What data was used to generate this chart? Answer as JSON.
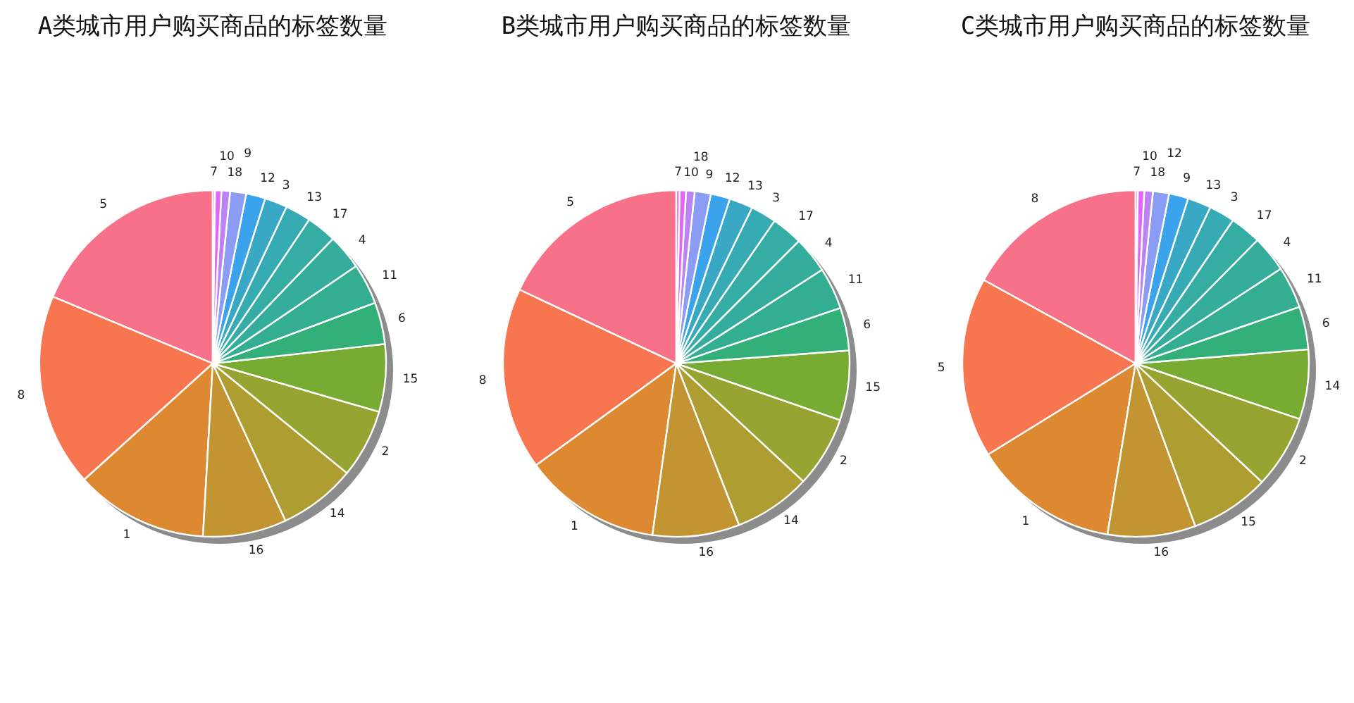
{
  "chart_data": [
    {
      "type": "pie",
      "title": "A类城市用户购买商品的标签数量",
      "categories": [
        "5",
        "8",
        "1",
        "16",
        "14",
        "2",
        "15",
        "6",
        "11",
        "4",
        "17",
        "13",
        "3",
        "12",
        "9",
        "18",
        "10",
        "7"
      ],
      "values": [
        18.7,
        18.0,
        12.4,
        7.8,
        7.2,
        6.4,
        6.3,
        3.9,
        3.8,
        3.3,
        2.8,
        2.4,
        2.1,
        1.8,
        1.5,
        0.8,
        0.6,
        0.2
      ],
      "colors": [
        "#f77189",
        "#f7754f",
        "#dc8932",
        "#c39532",
        "#ae9d31",
        "#97a431",
        "#77ab31",
        "#33b07a",
        "#34ae91",
        "#35ad9c",
        "#36ada4",
        "#37abb4",
        "#38a8c5",
        "#3ba3ec",
        "#8b9cf4",
        "#bb83f4",
        "#e167f4",
        "#f565cc"
      ]
    },
    {
      "type": "pie",
      "title": "B类城市用户购买商品的标签数量",
      "categories": [
        "5",
        "8",
        "1",
        "16",
        "14",
        "2",
        "15",
        "6",
        "11",
        "4",
        "17",
        "3",
        "13",
        "12",
        "9",
        "18",
        "10",
        "7"
      ],
      "values": [
        18.0,
        17.0,
        12.8,
        8.1,
        7.2,
        6.6,
        6.5,
        4.0,
        3.9,
        3.4,
        2.9,
        2.4,
        2.2,
        1.8,
        1.5,
        0.8,
        0.6,
        0.3
      ],
      "colors": [
        "#f77189",
        "#f7754f",
        "#dc8932",
        "#c39532",
        "#ae9d31",
        "#97a431",
        "#77ab31",
        "#33b07a",
        "#34ae91",
        "#35ad9c",
        "#36ada4",
        "#37abb4",
        "#38a8c5",
        "#3ba3ec",
        "#8b9cf4",
        "#bb83f4",
        "#e167f4",
        "#f565cc"
      ]
    },
    {
      "type": "pie",
      "title": "C类城市用户购买商品的标签数量",
      "categories": [
        "8",
        "5",
        "1",
        "16",
        "15",
        "2",
        "14",
        "6",
        "11",
        "4",
        "17",
        "3",
        "13",
        "9",
        "12",
        "18",
        "10",
        "7"
      ],
      "values": [
        17.0,
        16.8,
        13.6,
        8.2,
        7.4,
        6.8,
        6.5,
        4.0,
        3.9,
        3.4,
        2.9,
        2.4,
        2.2,
        1.8,
        1.5,
        0.8,
        0.6,
        0.2
      ],
      "colors": [
        "#f77189",
        "#f7754f",
        "#dc8932",
        "#c39532",
        "#ae9d31",
        "#97a431",
        "#77ab31",
        "#33b07a",
        "#34ae91",
        "#35ad9c",
        "#36ada4",
        "#37abb4",
        "#38a8c5",
        "#3ba3ec",
        "#8b9cf4",
        "#bb83f4",
        "#e167f4",
        "#f565cc"
      ]
    }
  ]
}
